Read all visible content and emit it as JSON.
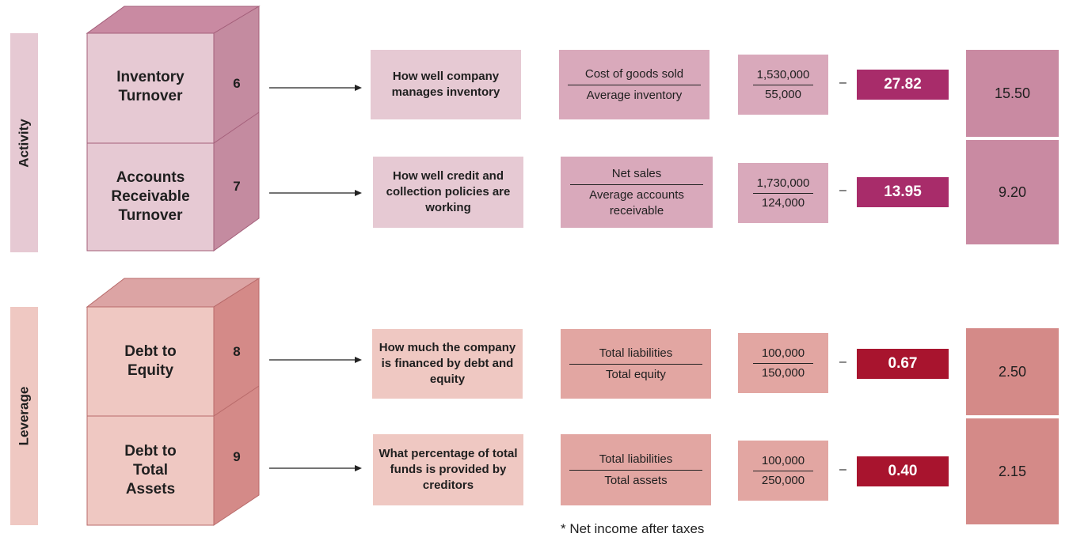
{
  "colors": {
    "activity_light": "#e6c9d3",
    "activity_mid": "#d9a9bb",
    "activity_dark": "#c48ba0",
    "activity_top": "#c98aa2",
    "activity_result": "#a82c6a",
    "leverage_light": "#efc8c2",
    "leverage_mid": "#e2a6a2",
    "leverage_dark": "#d48a88",
    "leverage_top": "#dca4a4",
    "leverage_result": "#a8142e"
  },
  "groups": [
    {
      "label": "Activity",
      "rows": [
        {
          "name": "Inventory Turnover",
          "number": "6",
          "description": "How well company manages inventory",
          "numerator": "Cost of goods sold",
          "denominator": "Average inventory",
          "calc_numerator": "1,530,000",
          "calc_denominator": "55,000",
          "dash": "–",
          "result": "27.82",
          "benchmark": "15.50"
        },
        {
          "name": "Accounts Receivable Turnover",
          "number": "7",
          "description": "How well credit and collection policies are working",
          "numerator": "Net sales",
          "denominator": "Average accounts receivable",
          "calc_numerator": "1,730,000",
          "calc_denominator": "124,000",
          "dash": "–",
          "result": "13.95",
          "benchmark": "9.20"
        }
      ]
    },
    {
      "label": "Leverage",
      "rows": [
        {
          "name": "Debt to Equity",
          "number": "8",
          "description": "How much the company is financed by debt and equity",
          "numerator": "Total liabilities",
          "denominator": "Total equity",
          "calc_numerator": "100,000",
          "calc_denominator": "150,000",
          "dash": "–",
          "result": "0.67",
          "benchmark": "2.50"
        },
        {
          "name": "Debt to Total Assets",
          "number": "9",
          "description": "What percentage of total funds is provided by creditors",
          "numerator": "Total liabilities",
          "denominator": "Total assets",
          "calc_numerator": "100,000",
          "calc_denominator": "250,000",
          "dash": "–",
          "result": "0.40",
          "benchmark": "2.15"
        }
      ]
    }
  ],
  "footnote": "* Net income after taxes"
}
